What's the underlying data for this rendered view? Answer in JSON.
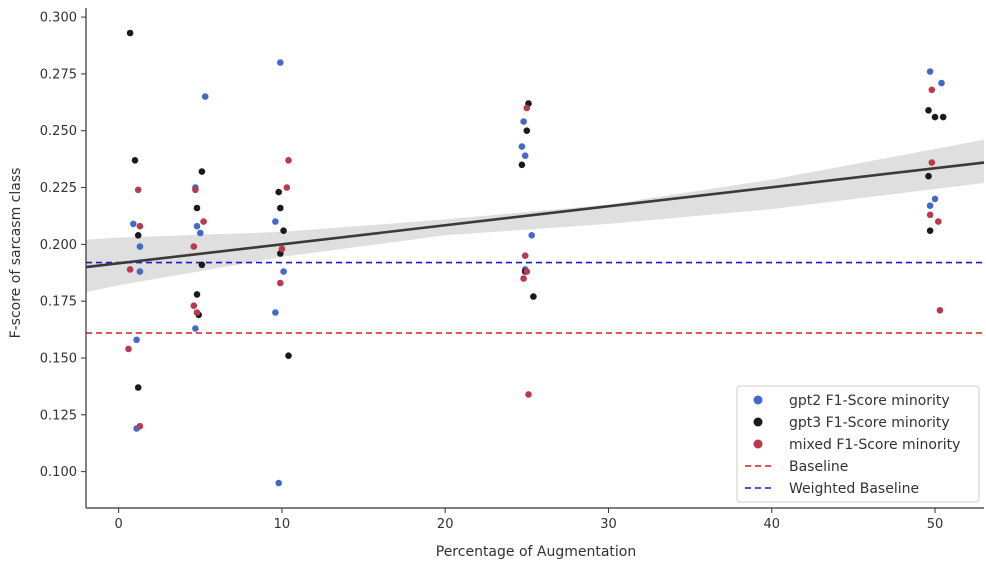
{
  "chart_data": {
    "type": "scatter",
    "xlabel": "Percentage of Augmentation",
    "ylabel": "F-score of sarcasm class",
    "xlim": [
      -2,
      53
    ],
    "ylim": [
      0.084,
      0.304
    ],
    "xticks": [
      0,
      10,
      20,
      30,
      40,
      50
    ],
    "yticks": [
      0.1,
      0.125,
      0.15,
      0.175,
      0.2,
      0.225,
      0.25,
      0.275,
      0.3
    ],
    "xtick_labels": [
      "0",
      "10",
      "20",
      "30",
      "40",
      "50"
    ],
    "ytick_labels": [
      "0.100",
      "0.125",
      "0.150",
      "0.175",
      "0.200",
      "0.225",
      "0.250",
      "0.275",
      "0.300"
    ],
    "grid": false,
    "legend_position": "bottom-right",
    "series": [
      {
        "name": "gpt2 F1-Score minority",
        "color": "#4469c6",
        "points": [
          [
            0.9,
            0.209
          ],
          [
            1.3,
            0.199
          ],
          [
            1.3,
            0.188
          ],
          [
            1.1,
            0.158
          ],
          [
            1.1,
            0.119
          ],
          [
            4.7,
            0.225
          ],
          [
            4.8,
            0.208
          ],
          [
            5.0,
            0.205
          ],
          [
            5.3,
            0.265
          ],
          [
            4.7,
            0.163
          ],
          [
            9.9,
            0.28
          ],
          [
            9.6,
            0.21
          ],
          [
            10.0,
            0.198
          ],
          [
            10.1,
            0.188
          ],
          [
            9.6,
            0.17
          ],
          [
            9.8,
            0.095
          ],
          [
            24.8,
            0.254
          ],
          [
            24.7,
            0.243
          ],
          [
            24.9,
            0.239
          ],
          [
            25.3,
            0.204
          ],
          [
            24.9,
            0.189
          ],
          [
            49.7,
            0.276
          ],
          [
            50.4,
            0.271
          ],
          [
            50.0,
            0.22
          ],
          [
            49.7,
            0.217
          ]
        ]
      },
      {
        "name": "gpt3 F1-Score minority",
        "color": "#1a1a1a",
        "points": [
          [
            0.7,
            0.293
          ],
          [
            1.0,
            0.237
          ],
          [
            1.2,
            0.204
          ],
          [
            1.2,
            0.137
          ],
          [
            5.1,
            0.232
          ],
          [
            4.8,
            0.216
          ],
          [
            5.1,
            0.191
          ],
          [
            4.8,
            0.178
          ],
          [
            4.9,
            0.169
          ],
          [
            9.8,
            0.223
          ],
          [
            9.9,
            0.216
          ],
          [
            10.1,
            0.206
          ],
          [
            9.9,
            0.196
          ],
          [
            10.4,
            0.151
          ],
          [
            25.1,
            0.262
          ],
          [
            25.0,
            0.25
          ],
          [
            24.7,
            0.235
          ],
          [
            24.9,
            0.188
          ],
          [
            25.4,
            0.177
          ],
          [
            49.6,
            0.259
          ],
          [
            50.0,
            0.256
          ],
          [
            50.5,
            0.256
          ],
          [
            49.6,
            0.23
          ],
          [
            49.7,
            0.206
          ]
        ]
      },
      {
        "name": "mixed F1-Score minority",
        "color": "#b83a4b",
        "points": [
          [
            1.2,
            0.224
          ],
          [
            1.3,
            0.208
          ],
          [
            0.7,
            0.189
          ],
          [
            0.6,
            0.154
          ],
          [
            1.3,
            0.12
          ],
          [
            4.7,
            0.224
          ],
          [
            5.2,
            0.21
          ],
          [
            4.6,
            0.199
          ],
          [
            4.6,
            0.173
          ],
          [
            4.8,
            0.17
          ],
          [
            10.4,
            0.237
          ],
          [
            10.3,
            0.225
          ],
          [
            10.0,
            0.198
          ],
          [
            9.9,
            0.183
          ],
          [
            25.0,
            0.26
          ],
          [
            24.9,
            0.195
          ],
          [
            24.8,
            0.185
          ],
          [
            25.0,
            0.188
          ],
          [
            25.1,
            0.134
          ],
          [
            49.8,
            0.268
          ],
          [
            49.8,
            0.236
          ],
          [
            49.7,
            0.213
          ],
          [
            50.2,
            0.21
          ],
          [
            50.3,
            0.171
          ]
        ]
      }
    ],
    "reference_lines": [
      {
        "name": "Baseline",
        "y": 0.161,
        "color": "#e01a1a",
        "style": "dashed"
      },
      {
        "name": "Weighted Baseline",
        "y": 0.192,
        "color": "#1a1acc",
        "style": "dashed"
      }
    ],
    "regression": {
      "color": "#3a3a3a",
      "band_color": "#d9d9d9",
      "line": [
        [
          -2,
          0.19
        ],
        [
          53,
          0.236
        ]
      ],
      "band_upper": [
        [
          -2,
          0.202
        ],
        [
          0,
          0.203
        ],
        [
          10,
          0.2055
        ],
        [
          20,
          0.211
        ],
        [
          30,
          0.2175
        ],
        [
          40,
          0.2285
        ],
        [
          53,
          0.246
        ]
      ],
      "band_lower": [
        [
          -2,
          0.179
        ],
        [
          0,
          0.182
        ],
        [
          10,
          0.1945
        ],
        [
          20,
          0.204
        ],
        [
          30,
          0.209
        ],
        [
          40,
          0.2155
        ],
        [
          53,
          0.227
        ]
      ]
    }
  }
}
